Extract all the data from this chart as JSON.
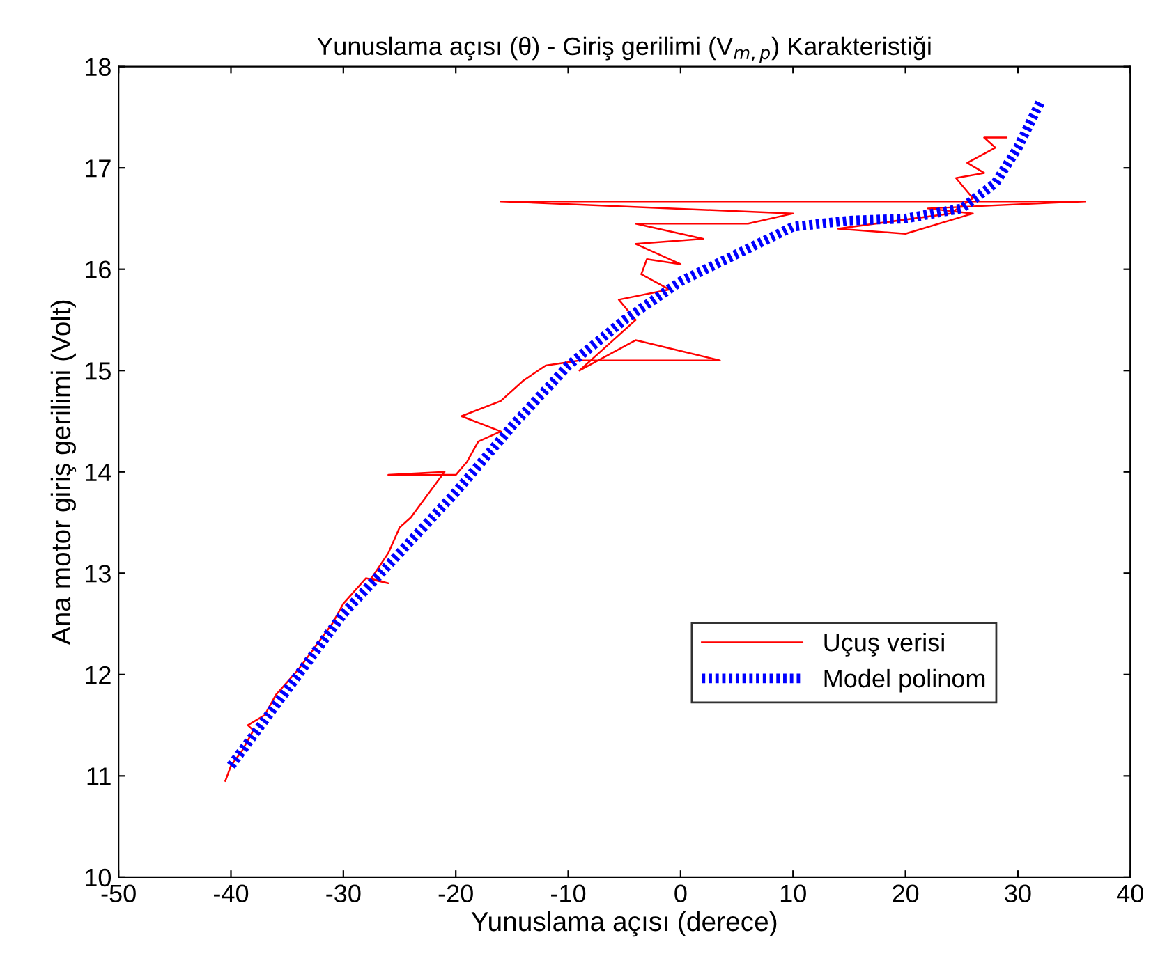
{
  "chart_data": {
    "type": "line",
    "title": "Yunuslama açısı (θ) - Giriş gerilimi (V$_{m,p}$) Karakteristiği",
    "xlabel": "Yunuslama açısı (derece)",
    "ylabel": "Ana motor giriş gerilimi (Volt)",
    "xlim": [
      -50,
      40
    ],
    "xticks": [
      -50,
      -40,
      -30,
      -20,
      -10,
      0,
      10,
      20,
      30,
      40
    ],
    "ylim": [
      10,
      18
    ],
    "yticks": [
      10,
      11,
      12,
      13,
      14,
      15,
      16,
      17,
      18
    ],
    "grid": false,
    "legend": "lower right",
    "series": [
      {
        "name": "Uçuş verisi",
        "color": "#ff0000",
        "line_style": "solid",
        "x": [
          -40.5,
          -40,
          -39,
          -38,
          -38.5,
          -37,
          -36,
          -34,
          -33,
          -31,
          -30,
          -28,
          -26,
          -27.5,
          -26,
          -25,
          -24,
          -22,
          -21,
          -26,
          -20,
          -19,
          -18,
          -16,
          -19.5,
          -16,
          -14,
          -12,
          -9,
          3.5,
          -4,
          -9,
          -6,
          -4,
          -5.5,
          -1,
          -3.5,
          -3,
          0,
          -4,
          2,
          -4,
          6,
          10,
          -16,
          36,
          22,
          26,
          20,
          14,
          24,
          26,
          24.5,
          27,
          25.5,
          28,
          27,
          29
        ],
        "values": [
          10.95,
          11.1,
          11.25,
          11.45,
          11.5,
          11.6,
          11.8,
          12.05,
          12.2,
          12.5,
          12.7,
          12.95,
          12.9,
          12.95,
          13.2,
          13.45,
          13.55,
          13.85,
          14.0,
          13.97,
          13.97,
          14.1,
          14.3,
          14.4,
          14.55,
          14.7,
          14.9,
          15.05,
          15.1,
          15.1,
          15.3,
          15.0,
          15.3,
          15.5,
          15.7,
          15.8,
          15.95,
          16.1,
          16.05,
          16.25,
          16.3,
          16.45,
          16.45,
          16.55,
          16.67,
          16.67,
          16.6,
          16.55,
          16.35,
          16.4,
          16.55,
          16.7,
          16.9,
          16.95,
          17.05,
          17.2,
          17.3,
          17.3
        ]
      },
      {
        "name": "Model polinom",
        "color": "#0000ff",
        "line_style": "dotted",
        "x": [
          -40,
          -35,
          -30,
          -25,
          -20,
          -15,
          -10,
          -5,
          0,
          5,
          10,
          15,
          20,
          25,
          28,
          30,
          32
        ],
        "values": [
          11.1,
          11.85,
          12.6,
          13.2,
          13.8,
          14.45,
          15.05,
          15.5,
          15.88,
          16.15,
          16.42,
          16.48,
          16.5,
          16.6,
          16.85,
          17.2,
          17.65
        ]
      }
    ]
  }
}
